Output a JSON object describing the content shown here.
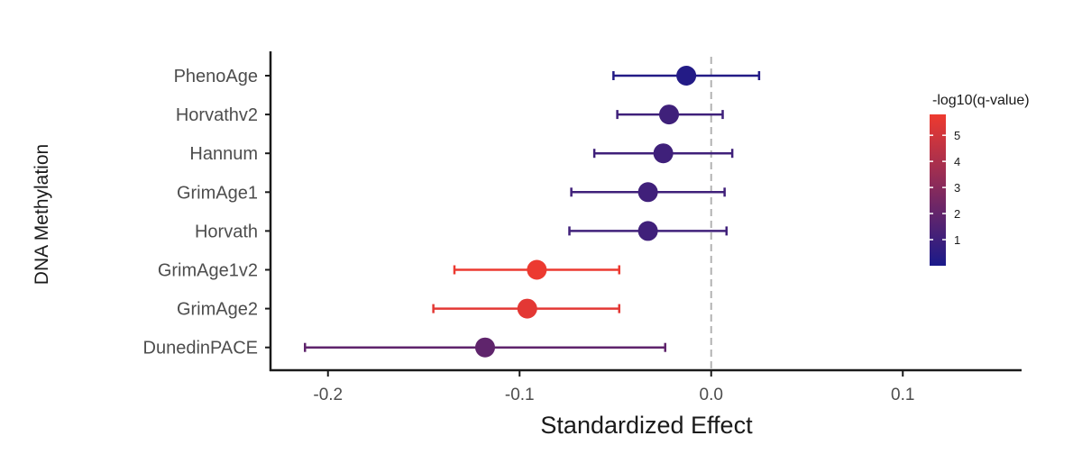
{
  "chart_data": {
    "type": "scatter",
    "subtype": "forest-plot",
    "title": "",
    "xlabel": "Standardized Effect",
    "ylabel": "DNA Methylation",
    "xlim": [
      -0.23,
      0.162
    ],
    "xticks": [
      -0.2,
      -0.1,
      0.0,
      0.1
    ],
    "xtick_labels": [
      "-0.2",
      "-0.1",
      "0.0",
      "0.1"
    ],
    "reference_line": 0.0,
    "color_scale": {
      "low": "#1a1a8a",
      "high": "#ee3a2f",
      "min": 0.0,
      "max": 5.8
    },
    "rows": [
      {
        "label": "PhenoAge",
        "estimate": -0.013,
        "lower": -0.051,
        "upper": 0.025,
        "q": 0.25
      },
      {
        "label": "Horvathv2",
        "estimate": -0.022,
        "lower": -0.049,
        "upper": 0.006,
        "q": 1.0
      },
      {
        "label": "Hannum",
        "estimate": -0.025,
        "lower": -0.061,
        "upper": 0.011,
        "q": 1.0
      },
      {
        "label": "GrimAge1",
        "estimate": -0.033,
        "lower": -0.073,
        "upper": 0.007,
        "q": 1.05
      },
      {
        "label": "Horvath",
        "estimate": -0.033,
        "lower": -0.074,
        "upper": 0.008,
        "q": 1.05
      },
      {
        "label": "GrimAge1v2",
        "estimate": -0.091,
        "lower": -0.134,
        "upper": -0.048,
        "q": 5.75
      },
      {
        "label": "GrimAge2",
        "estimate": -0.096,
        "lower": -0.145,
        "upper": -0.048,
        "q": 5.5
      },
      {
        "label": "DunedinPACE",
        "estimate": -0.118,
        "lower": -0.212,
        "upper": -0.024,
        "q": 1.9
      }
    ]
  },
  "legend": {
    "title": "-log10(q-value)",
    "ticks": [
      1,
      2,
      3,
      4,
      5
    ],
    "tick_labels": [
      "1",
      "2",
      "3",
      "4",
      "5"
    ]
  }
}
